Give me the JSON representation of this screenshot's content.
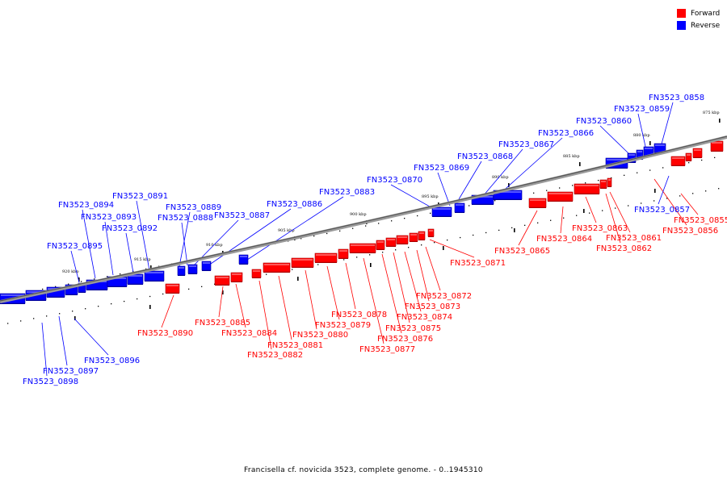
{
  "legend": {
    "forward_label": "Forward",
    "reverse_label": "Reverse",
    "forward_color": "#ff0000",
    "reverse_color": "#0000ff"
  },
  "caption": "Francisella cf. novicida 3523, complete genome. - 0..1945310",
  "ticks": [
    "875 kbp",
    "880 kbp",
    "885 kbp",
    "890 kbp",
    "895 kbp",
    "900 kbp",
    "905 kbp",
    "910 kbp",
    "915 kbp",
    "920 kbp"
  ],
  "genes_forward": [
    "FN3523_0855",
    "FN3523_0856",
    "FN3523_0861",
    "FN3523_0862",
    "FN3523_0863",
    "FN3523_0864",
    "FN3523_0865",
    "FN3523_0871",
    "FN3523_0872",
    "FN3523_0873",
    "FN3523_0874",
    "FN3523_0875",
    "FN3523_0876",
    "FN3523_0877",
    "FN3523_0878",
    "FN3523_0879",
    "FN3523_0880",
    "FN3523_0881",
    "FN3523_0882",
    "FN3523_0884",
    "FN3523_0885",
    "FN3523_0890"
  ],
  "genes_reverse": [
    "FN3523_0857",
    "FN3523_0858",
    "FN3523_0859",
    "FN3523_0860",
    "FN3523_0866",
    "FN3523_0867",
    "FN3523_0868",
    "FN3523_0869",
    "FN3523_0870",
    "FN3523_0883",
    "FN3523_0886",
    "FN3523_0887",
    "FN3523_0888",
    "FN3523_0889",
    "FN3523_0891",
    "FN3523_0892",
    "FN3523_0893",
    "FN3523_0894",
    "FN3523_0895",
    "FN3523_0896",
    "FN3523_0897",
    "FN3523_0898"
  ]
}
